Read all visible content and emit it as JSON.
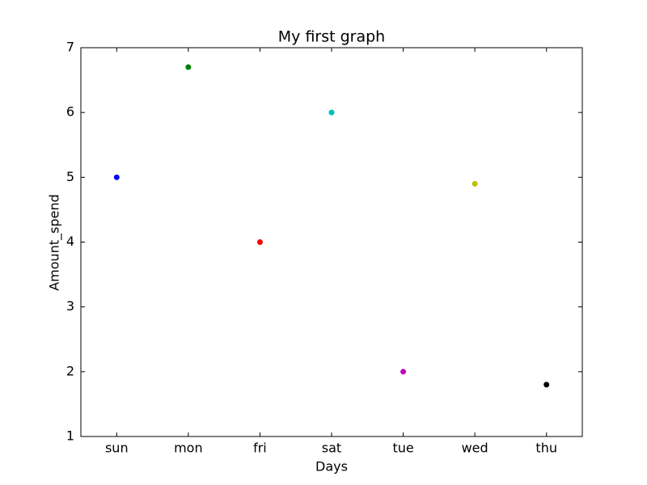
{
  "chart_data": {
    "type": "scatter",
    "title": "My first graph",
    "x_label": "Days",
    "y_label": "Amount_spend",
    "categories": [
      "sun",
      "mon",
      "fri",
      "sat",
      "tue",
      "wed",
      "thu"
    ],
    "values": [
      5,
      6.7,
      4,
      6,
      2,
      4.9,
      1.8
    ],
    "colors": [
      "#0000ff",
      "#008000",
      "#ff0000",
      "#00bfbf",
      "#bf00bf",
      "#bfbf00",
      "#000000"
    ],
    "ylim": [
      1,
      7
    ],
    "yticks": [
      1,
      2,
      3,
      4,
      5,
      6,
      7
    ],
    "grid": false
  }
}
